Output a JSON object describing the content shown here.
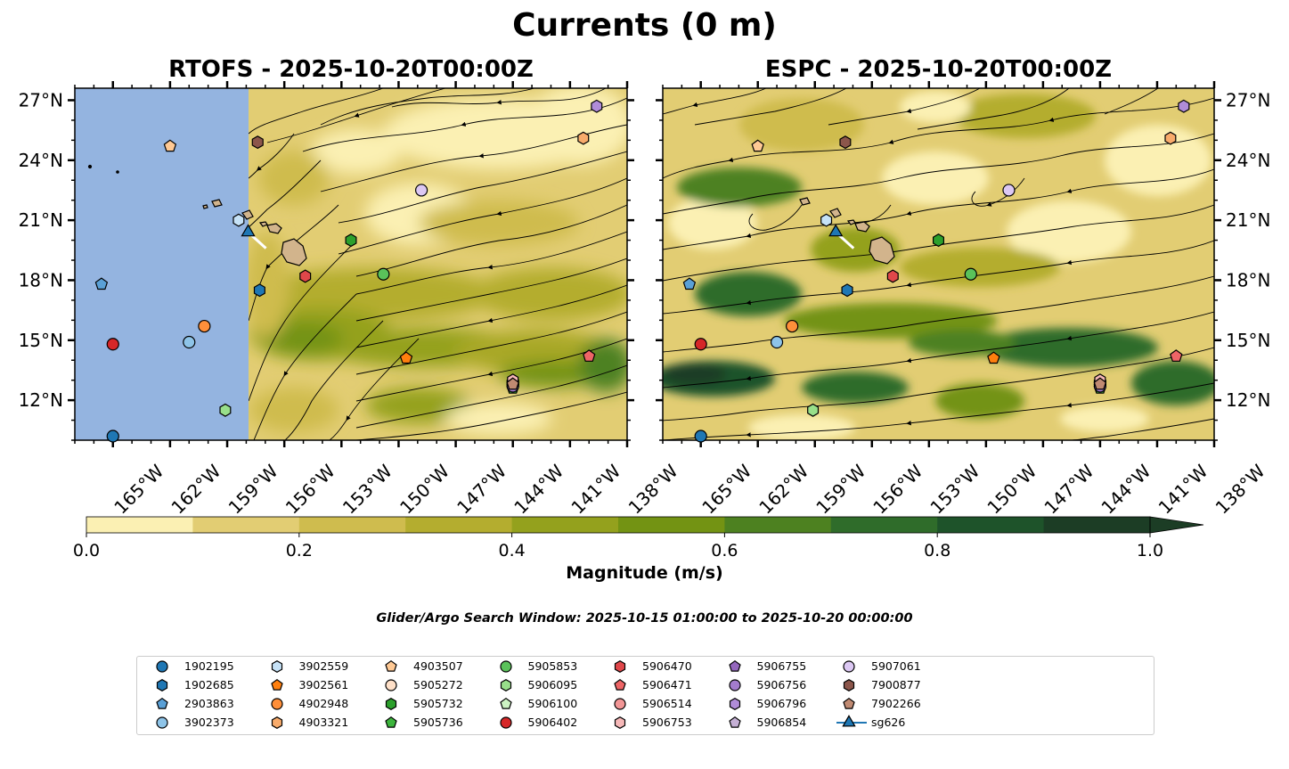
{
  "figure": {
    "title": "Currents (0 m)",
    "window_text": "Glider/Argo Search Window: 2025-10-15 01:00:00 to 2025-10-20 00:00:00"
  },
  "chart_data": {
    "type": "map",
    "panels": [
      {
        "title": "RTOFS - 2025-10-20T00:00Z",
        "model": "RTOFS",
        "lat_ticks": [
          "27°N",
          "24°N",
          "21°N",
          "18°N",
          "15°N",
          "12°N"
        ],
        "lon_ticks": [
          "165°W",
          "162°W",
          "159°W",
          "156°W",
          "153°W",
          "150°W",
          "147°W",
          "144°W",
          "141°W",
          "138°W"
        ],
        "lon_range": [
          -167,
          -138
        ],
        "lat_range": [
          10,
          27.6
        ],
        "data_lon_start": -157.8
      },
      {
        "title": "ESPC - 2025-10-20T00:00Z",
        "model": "ESPC",
        "lat_ticks": [
          "27°N",
          "24°N",
          "21°N",
          "18°N",
          "15°N",
          "12°N"
        ],
        "lon_ticks": [
          "165°W",
          "162°W",
          "159°W",
          "156°W",
          "153°W",
          "150°W",
          "147°W",
          "144°W",
          "141°W",
          "138°W"
        ],
        "lon_range": [
          -167,
          -138
        ],
        "lat_range": [
          10,
          27.6
        ],
        "data_lon_start": -167
      }
    ],
    "colorbar": {
      "label": "Magnitude (m/s)",
      "ticks": [
        "0.0",
        "0.2",
        "0.4",
        "0.6",
        "0.8",
        "1.0"
      ],
      "levels": [
        0,
        0.1,
        0.2,
        0.3,
        0.4,
        0.5,
        0.6,
        0.7,
        0.8,
        0.9,
        1.0
      ],
      "colors": [
        "#fbf0b3",
        "#e2cd73",
        "#cfbc4e",
        "#b4ad2f",
        "#94a11d",
        "#739313",
        "#4d8120",
        "#2f6c2a",
        "#1e532a",
        "#1c3d25"
      ],
      "extend": "max"
    },
    "platforms": [
      {
        "id": "1902195",
        "marker": "circle",
        "color": "#1f77b4",
        "lon": -165,
        "lat": 10.2
      },
      {
        "id": "1902685",
        "marker": "hexagon",
        "color": "#1f77b4",
        "lon": -157.3,
        "lat": 17.5
      },
      {
        "id": "2903863",
        "marker": "pentagon",
        "color": "#5aa0d6",
        "lon": -165.6,
        "lat": 17.8
      },
      {
        "id": "3902373",
        "marker": "circle",
        "color": "#8ec4e8",
        "lon": -161,
        "lat": 14.9
      },
      {
        "id": "3902559",
        "marker": "hexagon",
        "color": "#c6e2f7",
        "lon": -158.4,
        "lat": 21
      },
      {
        "id": "3902561",
        "marker": "pentagon",
        "color": "#ff7f0e",
        "lon": -149.6,
        "lat": 14.1
      },
      {
        "id": "4902948",
        "marker": "circle",
        "color": "#ff8f3a",
        "lon": -160.2,
        "lat": 15.7
      },
      {
        "id": "4903321",
        "marker": "hexagon",
        "color": "#f8ab6b",
        "lon": -140.3,
        "lat": 25.1
      },
      {
        "id": "4903507",
        "marker": "pentagon",
        "color": "#ffc994",
        "lon": -162,
        "lat": 24.7
      },
      {
        "id": "5905272",
        "marker": "circle",
        "color": "#ffe0c8",
        "lon": -144,
        "lat": 12.9
      },
      {
        "id": "5905732",
        "marker": "hexagon",
        "color": "#2ca02c",
        "lon": -152.5,
        "lat": 20
      },
      {
        "id": "5905736",
        "marker": "pentagon",
        "color": "#3cb43c",
        "lon": -144,
        "lat": 12.6
      },
      {
        "id": "5905853",
        "marker": "circle",
        "color": "#5ac25a",
        "lon": -150.8,
        "lat": 18.3
      },
      {
        "id": "5906095",
        "marker": "hexagon",
        "color": "#98df8a",
        "lon": -159.1,
        "lat": 11.5
      },
      {
        "id": "5906100",
        "marker": "pentagon",
        "color": "#cdf3c3",
        "lon": -144,
        "lat": 12.9
      },
      {
        "id": "5906402",
        "marker": "circle",
        "color": "#d62728",
        "lon": -165,
        "lat": 14.8
      },
      {
        "id": "5906470",
        "marker": "hexagon",
        "color": "#e0474a",
        "lon": -154.9,
        "lat": 18.2
      },
      {
        "id": "5906471",
        "marker": "pentagon",
        "color": "#ee6566",
        "lon": -140,
        "lat": 14.2
      },
      {
        "id": "5906514",
        "marker": "circle",
        "color": "#f29696",
        "lon": -144,
        "lat": 12.8
      },
      {
        "id": "5906753",
        "marker": "hexagon",
        "color": "#f6b8b8",
        "lon": -144,
        "lat": 13
      },
      {
        "id": "5906755",
        "marker": "pentagon",
        "color": "#9467bd",
        "lon": -144,
        "lat": 12.7
      },
      {
        "id": "5906756",
        "marker": "circle",
        "color": "#a37ccd",
        "lon": -144,
        "lat": 12.7
      },
      {
        "id": "5906796",
        "marker": "hexagon",
        "color": "#b08cd8",
        "lon": -139.6,
        "lat": 26.7
      },
      {
        "id": "5906854",
        "marker": "pentagon",
        "color": "#c5b0d5",
        "lon": -144,
        "lat": 12.8
      },
      {
        "id": "5907061",
        "marker": "circle",
        "color": "#dcc8f3",
        "lon": -148.8,
        "lat": 22.5
      },
      {
        "id": "7900877",
        "marker": "hexagon",
        "color": "#8c564b",
        "lon": -157.4,
        "lat": 24.9
      },
      {
        "id": "7902266",
        "marker": "pentagon",
        "color": "#c08a72",
        "lon": -144,
        "lat": 12.8
      },
      {
        "id": "sg626",
        "marker": "triangle",
        "color": "#1f77b4",
        "lon": -157.9,
        "lat": 20.4
      }
    ]
  },
  "colors": {
    "land": "#d2b48c",
    "no_data": "#94b4e0",
    "vectors": "#000000"
  }
}
